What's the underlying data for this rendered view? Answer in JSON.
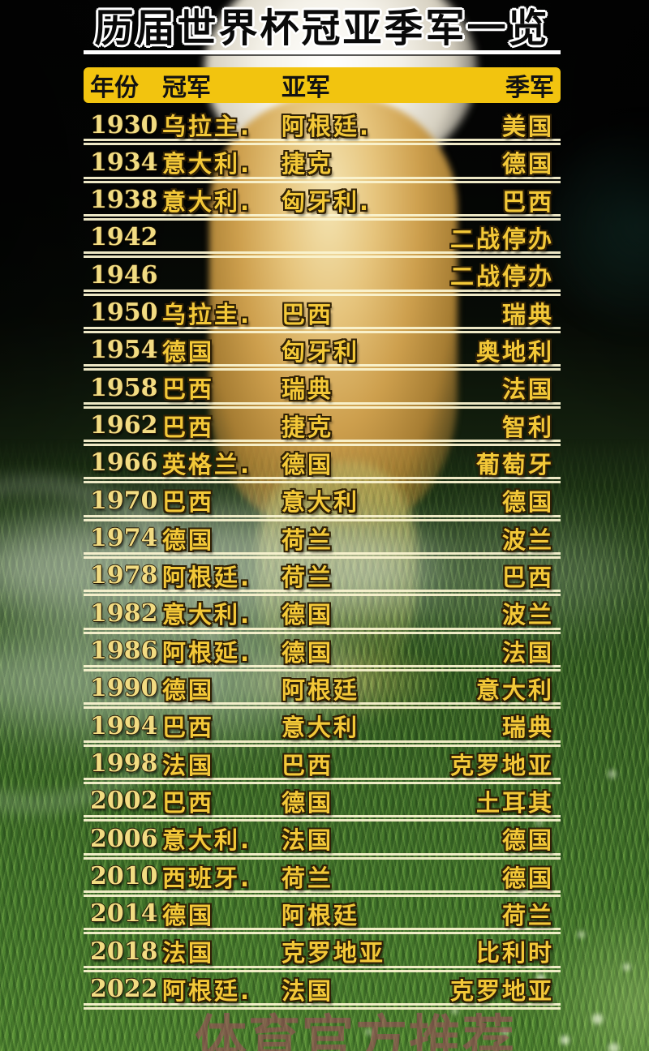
{
  "title": "历届世界杯冠亚季军一览",
  "watermark": "体育官方推荐",
  "table": {
    "headers": [
      "年份",
      "冠军",
      "亚军",
      "季军"
    ],
    "rows": [
      {
        "year": "1930",
        "champion": "乌拉主.",
        "runner_up": "阿根廷.",
        "third": "美国"
      },
      {
        "year": "1934",
        "champion": "意大利.",
        "runner_up": "捷克",
        "third": "德国"
      },
      {
        "year": "1938",
        "champion": "意大利.",
        "runner_up": "匈牙利.",
        "third": "巴西"
      },
      {
        "year": "1942",
        "champion": "",
        "runner_up": "",
        "third": "二战停办"
      },
      {
        "year": "1946",
        "champion": "",
        "runner_up": "",
        "third": "二战停办"
      },
      {
        "year": "1950",
        "champion": "乌拉圭.",
        "runner_up": "巴西",
        "third": "瑞典"
      },
      {
        "year": "1954",
        "champion": "德国",
        "runner_up": "匈牙利",
        "third": "奥地利"
      },
      {
        "year": "1958",
        "champion": "巴西",
        "runner_up": "瑞典",
        "third": "法国"
      },
      {
        "year": "1962",
        "champion": "巴西",
        "runner_up": "捷克",
        "third": "智利"
      },
      {
        "year": "1966",
        "champion": "英格兰.",
        "runner_up": "德国",
        "third": "葡萄牙"
      },
      {
        "year": "1970",
        "champion": "巴西",
        "runner_up": "意大利",
        "third": "德国"
      },
      {
        "year": "1974",
        "champion": "德国",
        "runner_up": "荷兰",
        "third": "波兰"
      },
      {
        "year": "1978",
        "champion": "阿根廷.",
        "runner_up": "荷兰",
        "third": "巴西"
      },
      {
        "year": "1982",
        "champion": "意大利.",
        "runner_up": "德国",
        "third": "波兰"
      },
      {
        "year": "1986",
        "champion": "阿根延.",
        "runner_up": "德国",
        "third": "法国"
      },
      {
        "year": "1990",
        "champion": "德国",
        "runner_up": "阿根廷",
        "third": "意大利"
      },
      {
        "year": "1994",
        "champion": "巴西",
        "runner_up": "意大利",
        "third": "瑞典"
      },
      {
        "year": "1998",
        "champion": "法国",
        "runner_up": "巴西",
        "third": "克罗地亚"
      },
      {
        "year": "2002",
        "champion": "巴西",
        "runner_up": "德国",
        "third": "土耳其"
      },
      {
        "year": "2006",
        "champion": "意大利.",
        "runner_up": "法国",
        "third": "德国"
      },
      {
        "year": "2010",
        "champion": "西班牙.",
        "runner_up": "荷兰",
        "third": "德国"
      },
      {
        "year": "2014",
        "champion": "德国",
        "runner_up": "阿根廷",
        "third": "荷兰"
      },
      {
        "year": "2018",
        "champion": "法国",
        "runner_up": "克罗地亚",
        "third": "比利时"
      },
      {
        "year": "2022",
        "champion": "阿根廷.",
        "runner_up": "法国",
        "third": "克罗地亚"
      }
    ]
  },
  "colors": {
    "header_bg": "#f2c40f",
    "header_text": "#121212",
    "year_text": "#f2dc82",
    "country_text": "#f3c838",
    "row_divider": "#faf3d0",
    "title_text": "#0a0a0a",
    "title_outline": "#ffffff",
    "watermark_text": "#a54860"
  }
}
